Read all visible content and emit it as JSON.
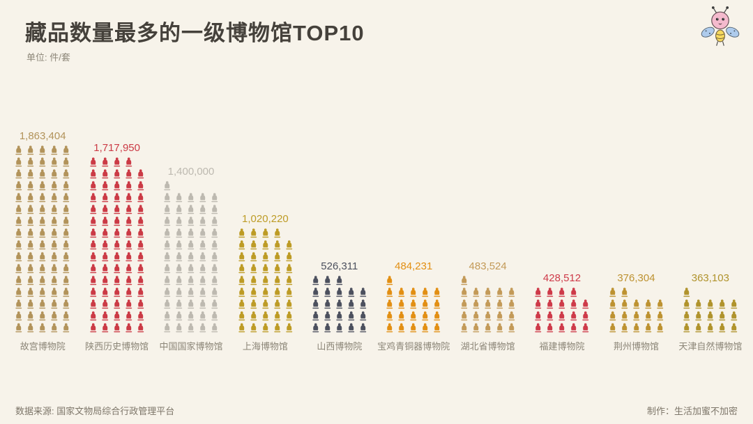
{
  "header": {
    "title": "藏品数量最多的一级博物馆TOP10",
    "unit_label": "单位: 件/套"
  },
  "footer": {
    "source": "数据来源: 国家文物局综合行政管理平台",
    "credit": "制作：生活加蜜不加密"
  },
  "logo": {
    "name": "bee-mascot"
  },
  "colors": {
    "background": "#f7f3ea",
    "title": "#45413b",
    "axis_label": "#8b8577",
    "footer_text": "#7d7669"
  },
  "chart_data": {
    "type": "bar",
    "subtype": "pictogram",
    "icon_name": "relic-statue-icon",
    "icons_per_row": 5,
    "legend_position": "none",
    "title": "藏品数量最多的一级博物馆TOP10",
    "xlabel": "",
    "ylabel": "件/套",
    "categories": [
      "故宫博物院",
      "陕西历史博物馆",
      "中国国家博物馆",
      "上海博物馆",
      "山西博物院",
      "宝鸡青铜器博物院",
      "湖北省博物馆",
      "福建博物院",
      "荆州博物馆",
      "天津自然博物馆"
    ],
    "values": [
      1863404,
      1717950,
      1400000,
      1020220,
      526311,
      484231,
      483524,
      428512,
      376304,
      363103
    ],
    "value_labels": [
      "1,863,404",
      "1,717,950",
      "1,400,000",
      "1,020,220",
      "526,311",
      "484,231",
      "483,524",
      "428,512",
      "376,304",
      "363,103"
    ],
    "icon_counts": [
      80,
      74,
      61,
      44,
      23,
      21,
      21,
      19,
      17,
      16
    ],
    "colors": [
      "#b2935a",
      "#cb3a45",
      "#bdb9b0",
      "#bd9b25",
      "#4c505e",
      "#e28f13",
      "#c39a58",
      "#ce3a49",
      "#bd9231",
      "#b0932c"
    ]
  }
}
